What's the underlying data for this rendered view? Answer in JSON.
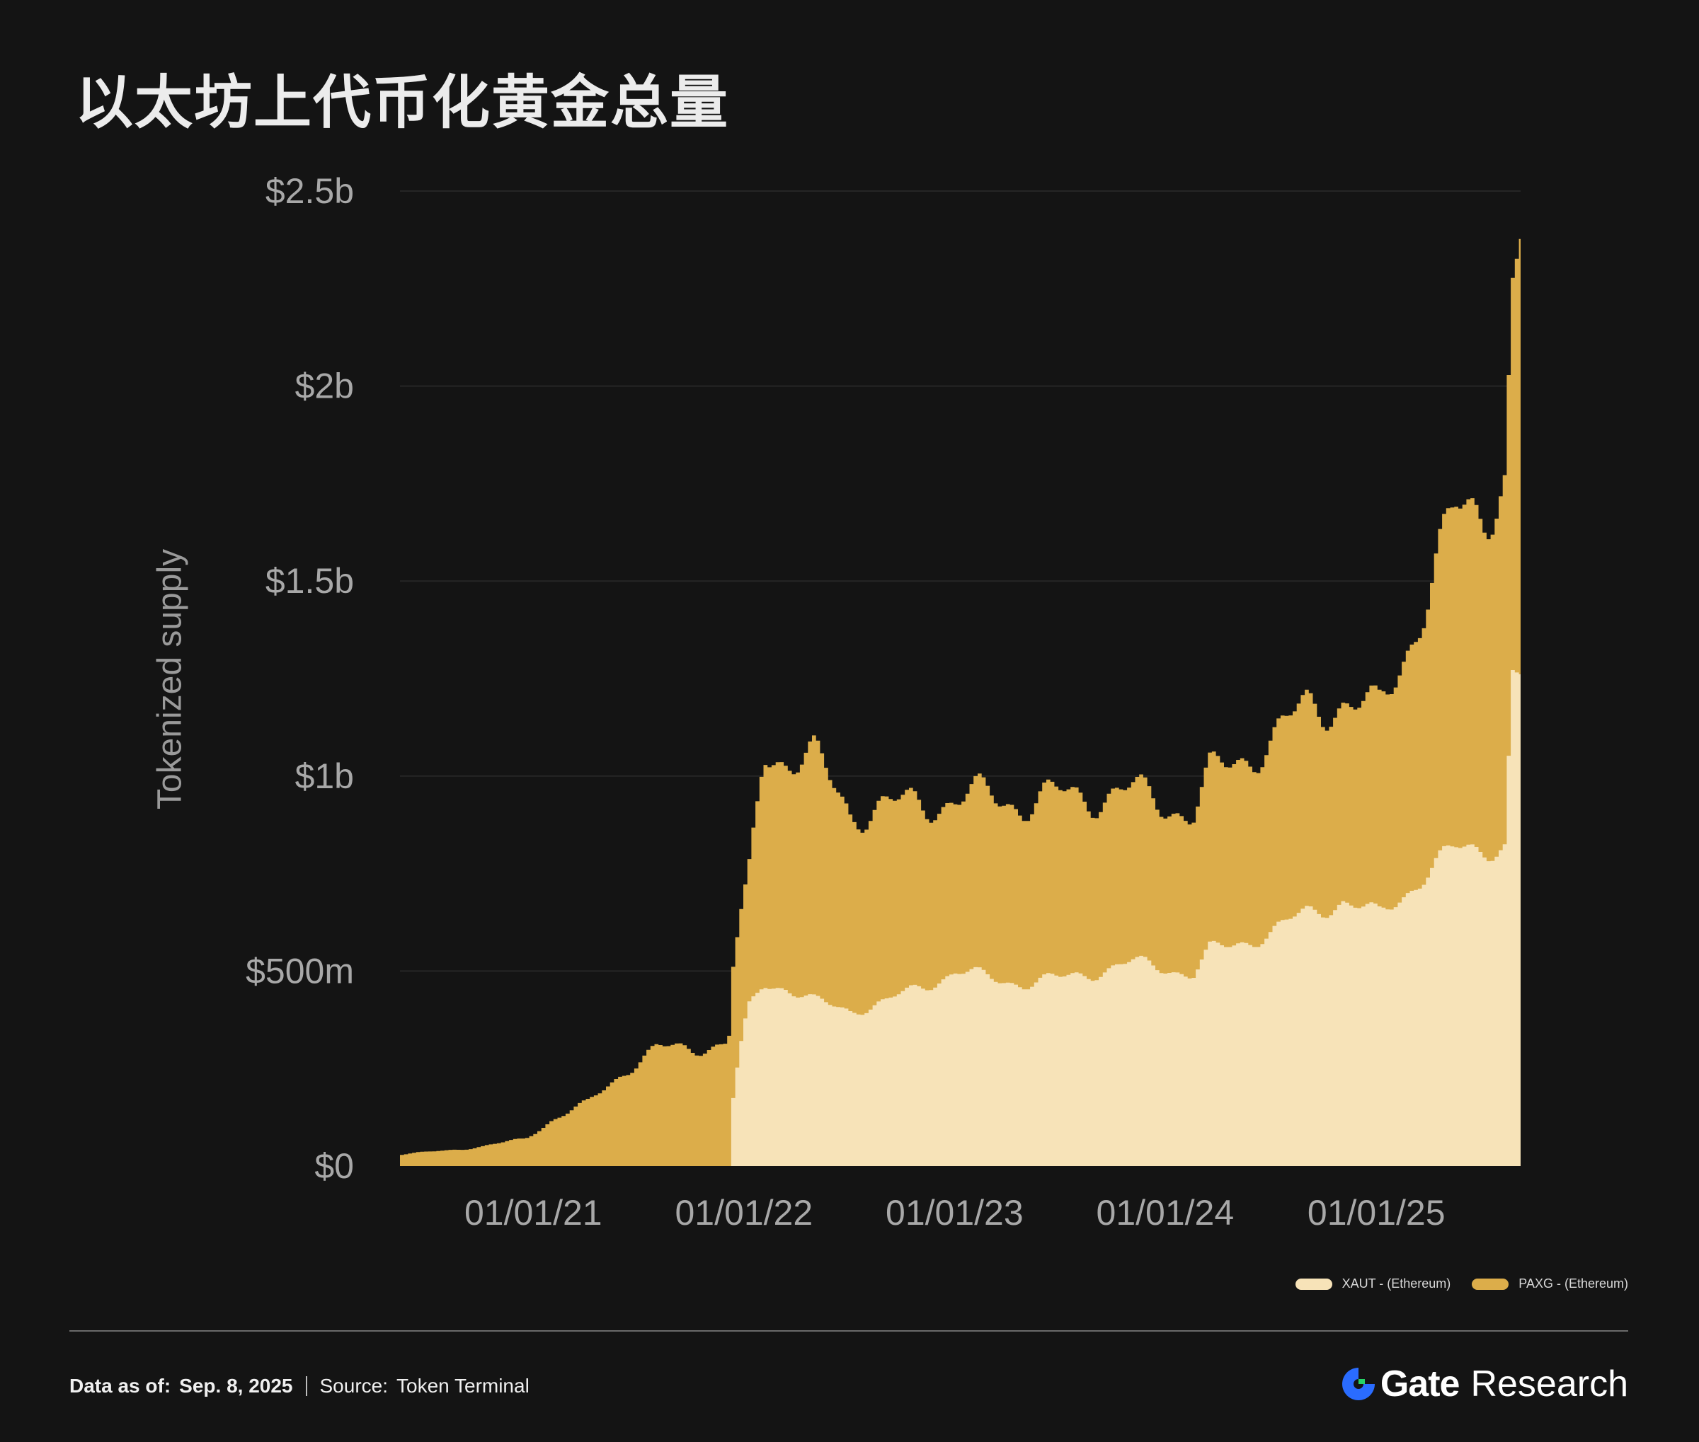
{
  "title": "以太坊上代币化黄金总量",
  "footer": {
    "date_label": "Data as of:",
    "date_value": "Sep. 8, 2025",
    "source_label": "Source:",
    "source_value": "Token Terminal"
  },
  "brand": {
    "name": "Gate",
    "suffix": "Research"
  },
  "colors": {
    "background": "#141414",
    "xaut": "#f7e3b8",
    "paxg": "#dcad4a",
    "gridline": "#262626",
    "text_axis": "#a8a8a8",
    "brand_blue": "#2a6cff",
    "brand_green": "#25d366"
  },
  "chart_data": {
    "type": "area",
    "stacked": true,
    "title": "以太坊上代币化黄金总量",
    "ylabel": "Tokenized supply",
    "xlabel": "",
    "x_ticks": [
      "01/01/21",
      "01/01/22",
      "01/01/23",
      "01/01/24",
      "01/01/25"
    ],
    "x_range": [
      "2020-05-15",
      "2025-09-08"
    ],
    "y_ticks": [
      "$0",
      "$500m",
      "$1b",
      "$1.5b",
      "$2b",
      "$2.5b"
    ],
    "ylim": [
      0,
      2500000000
    ],
    "grid": true,
    "legend_position": "bottom-right",
    "x": [
      "2020-05-15",
      "2020-08-01",
      "2020-10-01",
      "2020-12-15",
      "2021-02-01",
      "2021-04-01",
      "2021-06-01",
      "2021-08-01",
      "2021-10-01",
      "2021-11-25",
      "2021-12-05",
      "2021-12-20",
      "2022-01-05",
      "2022-02-01",
      "2022-03-10",
      "2022-05-01",
      "2022-07-01",
      "2022-09-01",
      "2022-11-01",
      "2023-01-01",
      "2023-03-01",
      "2023-05-01",
      "2023-07-01",
      "2023-09-01",
      "2023-11-01",
      "2024-01-01",
      "2024-02-15",
      "2024-03-15",
      "2024-05-01",
      "2024-07-01",
      "2024-09-01",
      "2024-11-01",
      "2025-01-01",
      "2025-02-15",
      "2025-04-01",
      "2025-05-15",
      "2025-07-01",
      "2025-08-10",
      "2025-08-20",
      "2025-09-05",
      "2025-09-08"
    ],
    "series": [
      {
        "name": "XAUT - (Ethereum)",
        "values": [
          0,
          0,
          0,
          0,
          0,
          0,
          0,
          0,
          0,
          0,
          120000000,
          280000000,
          400000000,
          470000000,
          460000000,
          420000000,
          400000000,
          420000000,
          460000000,
          500000000,
          480000000,
          470000000,
          480000000,
          500000000,
          520000000,
          510000000,
          490000000,
          550000000,
          570000000,
          600000000,
          650000000,
          680000000,
          640000000,
          700000000,
          760000000,
          810000000,
          820000000,
          820000000,
          1250000000,
          1250000000,
          1280000000
        ]
      },
      {
        "name": "PAXG - (Ethereum)",
        "values": [
          30000000,
          40000000,
          50000000,
          70000000,
          120000000,
          160000000,
          240000000,
          300000000,
          305000000,
          310000000,
          340000000,
          320000000,
          320000000,
          600000000,
          590000000,
          620000000,
          510000000,
          500000000,
          470000000,
          440000000,
          470000000,
          460000000,
          470000000,
          450000000,
          440000000,
          420000000,
          410000000,
          450000000,
          470000000,
          490000000,
          530000000,
          510000000,
          520000000,
          620000000,
          720000000,
          860000000,
          880000000,
          940000000,
          960000000,
          1100000000,
          1050000000
        ]
      }
    ]
  }
}
